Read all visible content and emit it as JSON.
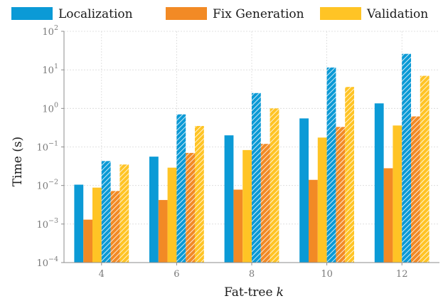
{
  "chart_data": {
    "type": "bar",
    "title": "",
    "xlabel": "Fat-tree",
    "xlabel_var": "k",
    "ylabel": "Time (s)",
    "yscale": "log",
    "ylim": [
      0.0001,
      100
    ],
    "y_ticks": [
      {
        "value": 0.0001,
        "base": "10",
        "exp": "−4"
      },
      {
        "value": 0.001,
        "base": "10",
        "exp": "−3"
      },
      {
        "value": 0.01,
        "base": "10",
        "exp": "−2"
      },
      {
        "value": 0.1,
        "base": "10",
        "exp": "−1"
      },
      {
        "value": 1,
        "base": "10",
        "exp": "0"
      },
      {
        "value": 10,
        "base": "10",
        "exp": "1"
      },
      {
        "value": 100,
        "base": "10",
        "exp": "2"
      }
    ],
    "grid": true,
    "legend_position": "top",
    "categories": [
      "4",
      "6",
      "8",
      "10",
      "12"
    ],
    "legend": [
      {
        "label": "Localization",
        "color": "#0b9ad6"
      },
      {
        "label": "Fix Generation",
        "color": "#f28a25"
      },
      {
        "label": "Validation",
        "color": "#ffc425"
      }
    ],
    "series": [
      {
        "stage": "Localization",
        "hatched": false,
        "color": "#0b9ad6",
        "values": [
          0.0105,
          0.056,
          0.2,
          0.55,
          1.35
        ]
      },
      {
        "stage": "Fix Generation",
        "hatched": false,
        "color": "#f28a25",
        "values": [
          0.0013,
          0.0042,
          0.0078,
          0.014,
          0.028
        ]
      },
      {
        "stage": "Validation",
        "hatched": false,
        "color": "#ffc425",
        "values": [
          0.0088,
          0.029,
          0.083,
          0.175,
          0.36
        ]
      },
      {
        "stage": "Localization",
        "hatched": true,
        "color": "#0b9ad6",
        "values": [
          0.043,
          0.7,
          2.5,
          11.5,
          26
        ]
      },
      {
        "stage": "Fix Generation",
        "hatched": true,
        "color": "#f28a25",
        "values": [
          0.0072,
          0.07,
          0.12,
          0.33,
          0.62
        ]
      },
      {
        "stage": "Validation",
        "hatched": true,
        "color": "#ffc425",
        "values": [
          0.035,
          0.35,
          1.0,
          3.6,
          7.0
        ]
      }
    ]
  }
}
